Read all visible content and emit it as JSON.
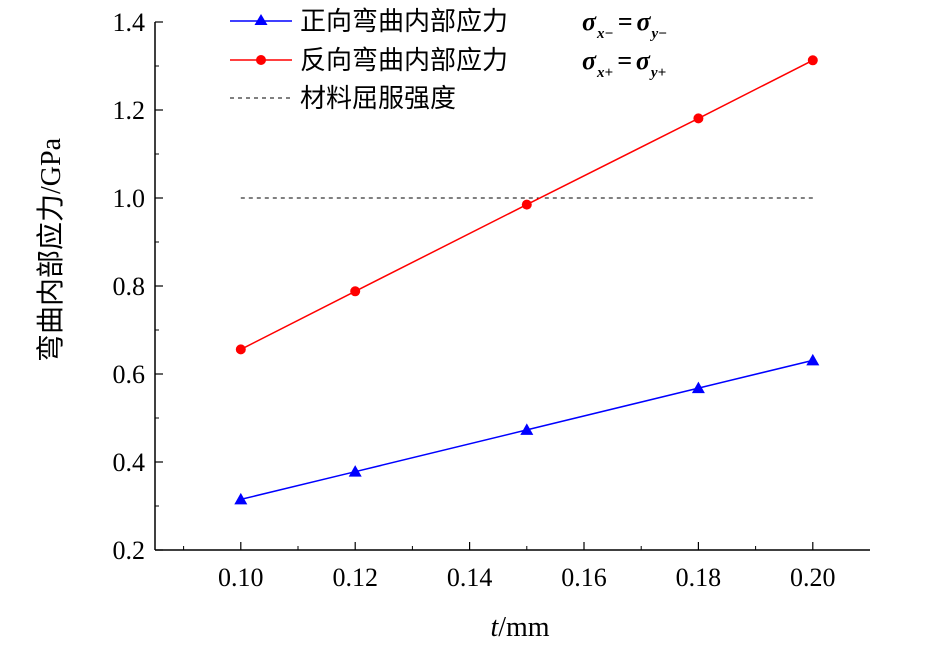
{
  "chart_data": {
    "type": "line",
    "xlabel_italic": "t",
    "xlabel_rest": "/mm",
    "ylabel": "弯曲内部应力/GPa",
    "xlim": [
      0.085,
      0.21
    ],
    "ylim": [
      0.2,
      1.4
    ],
    "x_ticks": [
      "0.10",
      "0.12",
      "0.14",
      "0.16",
      "0.18",
      "0.20"
    ],
    "x_tick_values": [
      0.1,
      0.12,
      0.14,
      0.16,
      0.18,
      0.2
    ],
    "y_ticks": [
      "0.2",
      "0.4",
      "0.6",
      "0.8",
      "1.0",
      "1.2",
      "1.4"
    ],
    "y_tick_values": [
      0.2,
      0.4,
      0.6,
      0.8,
      1.0,
      1.2,
      1.4
    ],
    "grid": false,
    "legend_position": "top-center",
    "series": [
      {
        "name": "正向弯曲内部应力",
        "formula": {
          "s1": "σ",
          "sub1": "x−",
          "eq": "=",
          "s2": "σ",
          "sub2": "y−"
        },
        "color": "#0000ff",
        "marker": "triangle",
        "x": [
          0.1,
          0.12,
          0.15,
          0.18,
          0.2
        ],
        "y": [
          0.315,
          0.378,
          0.473,
          0.568,
          0.631
        ]
      },
      {
        "name": "反向弯曲内部应力",
        "formula": {
          "s1": "σ",
          "sub1": "x+",
          "eq": "=",
          "s2": "σ",
          "sub2": "y+"
        },
        "color": "#ff0000",
        "marker": "circle",
        "x": [
          0.1,
          0.12,
          0.15,
          0.18,
          0.2
        ],
        "y": [
          0.656,
          0.788,
          0.985,
          1.181,
          1.313
        ]
      }
    ],
    "reference_line": {
      "name": "材料屈服强度",
      "y": 1.0,
      "x_range": [
        0.1,
        0.2
      ],
      "color": "#000000",
      "style": "dashed"
    }
  }
}
